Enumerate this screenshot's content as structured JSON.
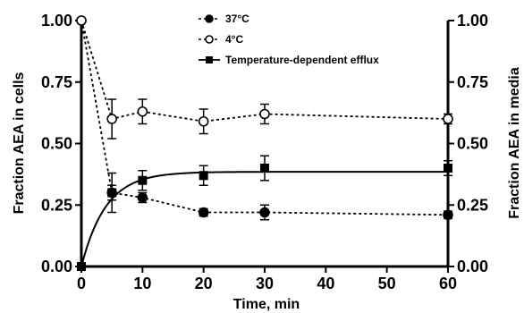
{
  "chart_data": {
    "type": "line",
    "xlabel": "Time, min",
    "ylabel_left": "Fraction AEA in cells",
    "ylabel_right": "Fraction AEA in media",
    "xlim": [
      0,
      60
    ],
    "ylim_left": [
      0,
      1
    ],
    "ylim_right": [
      0,
      1
    ],
    "x_ticks": [
      "0",
      "10",
      "20",
      "30",
      "40",
      "50",
      "60"
    ],
    "y_ticks": [
      "0.00",
      "0.25",
      "0.50",
      "0.75",
      "1.00"
    ],
    "grid": false,
    "legend_position": "top-center",
    "series": [
      {
        "name": "37°C",
        "axis": "left",
        "marker": "filled-circle",
        "line": "dashed",
        "points": [
          {
            "x": 0,
            "y": 1.0,
            "err": 0.0
          },
          {
            "x": 5,
            "y": 0.3,
            "err": 0.03
          },
          {
            "x": 10,
            "y": 0.28,
            "err": 0.02
          },
          {
            "x": 20,
            "y": 0.22,
            "err": 0.015
          },
          {
            "x": 30,
            "y": 0.22,
            "err": 0.03
          },
          {
            "x": 60,
            "y": 0.21,
            "err": 0.015
          }
        ]
      },
      {
        "name": "4°C",
        "axis": "left",
        "marker": "open-circle",
        "line": "dashed",
        "points": [
          {
            "x": 0,
            "y": 1.0,
            "err": 0.0
          },
          {
            "x": 5,
            "y": 0.6,
            "err": 0.08
          },
          {
            "x": 10,
            "y": 0.63,
            "err": 0.05
          },
          {
            "x": 20,
            "y": 0.59,
            "err": 0.05
          },
          {
            "x": 30,
            "y": 0.62,
            "err": 0.04
          },
          {
            "x": 60,
            "y": 0.6,
            "err": 0.02
          }
        ]
      },
      {
        "name": "Temperature-dependent efflux",
        "axis": "right",
        "marker": "filled-square",
        "line": "solid-fit",
        "points": [
          {
            "x": 0,
            "y": 0.0,
            "err": 0.0
          },
          {
            "x": 5,
            "y": 0.3,
            "err": 0.08
          },
          {
            "x": 10,
            "y": 0.35,
            "err": 0.04
          },
          {
            "x": 20,
            "y": 0.37,
            "err": 0.04
          },
          {
            "x": 30,
            "y": 0.4,
            "err": 0.05
          },
          {
            "x": 60,
            "y": 0.4,
            "err": 0.03
          }
        ],
        "fit": {
          "plateau": 0.385,
          "k": 0.25
        }
      }
    ]
  }
}
